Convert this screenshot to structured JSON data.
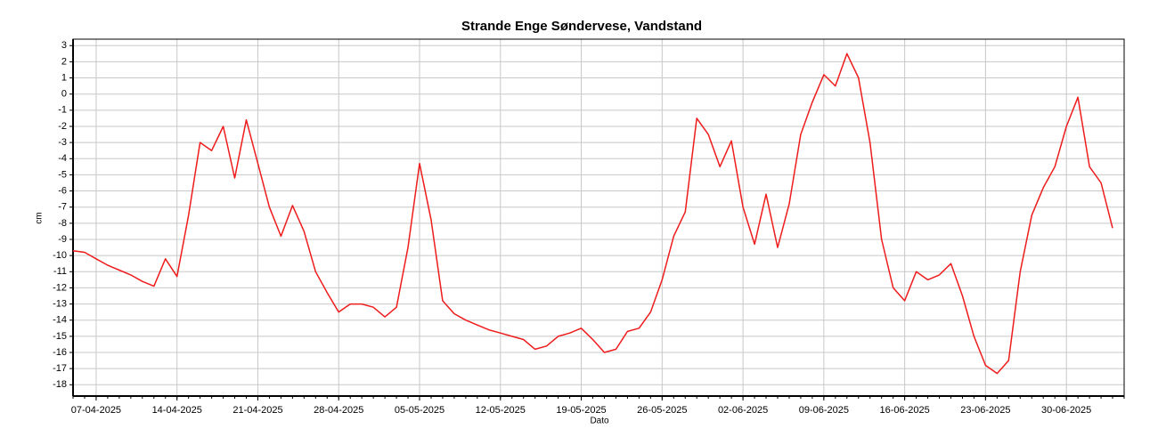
{
  "chart_data": {
    "type": "line",
    "title": "Strande Enge Søndervese, Vandstand",
    "xlabel": "Dato",
    "ylabel": "cm",
    "x": [
      "05-04-2025",
      "06-04-2025",
      "07-04-2025",
      "08-04-2025",
      "09-04-2025",
      "10-04-2025",
      "11-04-2025",
      "12-04-2025",
      "13-04-2025",
      "14-04-2025",
      "15-04-2025",
      "16-04-2025",
      "17-04-2025",
      "18-04-2025",
      "19-04-2025",
      "20-04-2025",
      "21-04-2025",
      "22-04-2025",
      "23-04-2025",
      "24-04-2025",
      "25-04-2025",
      "26-04-2025",
      "27-04-2025",
      "28-04-2025",
      "29-04-2025",
      "30-04-2025",
      "01-05-2025",
      "02-05-2025",
      "03-05-2025",
      "04-05-2025",
      "05-05-2025",
      "06-05-2025",
      "07-05-2025",
      "08-05-2025",
      "09-05-2025",
      "10-05-2025",
      "11-05-2025",
      "12-05-2025",
      "13-05-2025",
      "14-05-2025",
      "15-05-2025",
      "16-05-2025",
      "17-05-2025",
      "18-05-2025",
      "19-05-2025",
      "20-05-2025",
      "21-05-2025",
      "22-05-2025",
      "23-05-2025",
      "24-05-2025",
      "25-05-2025",
      "26-05-2025",
      "27-05-2025",
      "28-05-2025",
      "29-05-2025",
      "30-05-2025",
      "31-05-2025",
      "01-06-2025",
      "02-06-2025",
      "03-06-2025",
      "04-06-2025",
      "05-06-2025",
      "06-06-2025",
      "07-06-2025",
      "08-06-2025",
      "09-06-2025",
      "10-06-2025",
      "11-06-2025",
      "12-06-2025",
      "13-06-2025",
      "14-06-2025",
      "15-06-2025",
      "16-06-2025",
      "17-06-2025",
      "18-06-2025",
      "19-06-2025",
      "20-06-2025",
      "21-06-2025",
      "22-06-2025",
      "23-06-2025",
      "24-06-2025",
      "25-06-2025",
      "26-06-2025",
      "27-06-2025",
      "28-06-2025",
      "29-06-2025",
      "30-06-2025",
      "01-07-2025",
      "02-07-2025",
      "03-07-2025",
      "04-07-2025"
    ],
    "series": [
      {
        "name": "Vandstand",
        "color": "#ee1c1c",
        "values": [
          -9.7,
          -9.8,
          -10.2,
          -10.6,
          -10.9,
          -11.2,
          -11.6,
          -11.9,
          -10.2,
          -11.3,
          -7.5,
          -3.0,
          -3.5,
          -2.0,
          -5.2,
          -1.6,
          -4.3,
          -7.0,
          -8.8,
          -6.9,
          -8.5,
          -11.0,
          -12.3,
          -13.5,
          -13.0,
          -13.0,
          -13.2,
          -13.8,
          -13.2,
          -9.5,
          -4.3,
          -7.8,
          -12.8,
          -13.6,
          -14.0,
          -14.3,
          -14.6,
          -14.8,
          -15.0,
          -15.2,
          -15.8,
          -15.6,
          -15.0,
          -14.8,
          -14.5,
          -15.2,
          -16.0,
          -15.8,
          -14.7,
          -14.5,
          -13.5,
          -11.5,
          -8.8,
          -7.3,
          -1.5,
          -2.5,
          -4.5,
          -2.9,
          -7.0,
          -9.3,
          -6.2,
          -9.5,
          -6.8,
          -2.5,
          -0.5,
          1.2,
          0.5,
          2.5,
          1.0,
          -3.0,
          -9.0,
          -12.0,
          -12.8,
          -11.0,
          -11.5,
          -11.2,
          -10.5,
          -12.5,
          -15.0,
          -16.8,
          -17.3,
          -16.5,
          -11.0,
          -7.5,
          -5.8,
          -4.5,
          -2.0,
          -0.2,
          -4.5,
          -5.5,
          -8.3
        ]
      }
    ],
    "xlim": [
      "05-04-2025",
      "05-07-2025"
    ],
    "xticks": [
      "07-04-2025",
      "14-04-2025",
      "21-04-2025",
      "28-04-2025",
      "05-05-2025",
      "12-05-2025",
      "19-05-2025",
      "26-05-2025",
      "02-06-2025",
      "09-06-2025",
      "16-06-2025",
      "23-06-2025",
      "30-06-2025"
    ],
    "ylim": [
      -18.7,
      3.4
    ],
    "yticks": [
      -18,
      -17,
      -16,
      -15,
      -14,
      -13,
      -12,
      -11,
      -10,
      -9,
      -8,
      -7,
      -6,
      -5,
      -4,
      -3,
      -2,
      -1,
      0,
      1,
      2,
      3
    ],
    "grid": true
  }
}
